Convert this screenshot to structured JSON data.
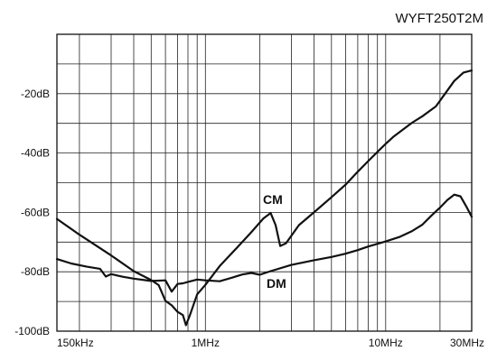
{
  "chart_data": {
    "type": "line",
    "title": "WYFT250T2M",
    "x_scale": "log",
    "xlim_hz": [
      150000,
      30000000
    ],
    "ylim_db": [
      -100,
      0
    ],
    "grid": true,
    "x_tick_labels": [
      {
        "hz": 150000,
        "label": "150kHz"
      },
      {
        "hz": 1000000,
        "label": "1MHz"
      },
      {
        "hz": 10000000,
        "label": "10MHz"
      },
      {
        "hz": 30000000,
        "label": "30MHz"
      }
    ],
    "y_tick_labels": [
      {
        "db": -20,
        "label": "-20dB"
      },
      {
        "db": -40,
        "label": "-40dB"
      },
      {
        "db": -60,
        "label": "-60dB"
      },
      {
        "db": -80,
        "label": "-80dB"
      },
      {
        "db": -100,
        "label": "-100dB"
      }
    ],
    "series": [
      {
        "name": "CM",
        "points": [
          [
            150000,
            -62.2
          ],
          [
            200000,
            -67.5
          ],
          [
            300000,
            -74.5
          ],
          [
            400000,
            -79.8
          ],
          [
            500000,
            -82.8
          ],
          [
            550000,
            -84.5
          ],
          [
            600000,
            -89.8
          ],
          [
            650000,
            -91.3
          ],
          [
            700000,
            -93.5
          ],
          [
            750000,
            -94.6
          ],
          [
            780000,
            -98.0
          ],
          [
            820000,
            -94.6
          ],
          [
            900000,
            -87.6
          ],
          [
            1000000,
            -84.4
          ],
          [
            1200000,
            -78.1
          ],
          [
            1500000,
            -71.8
          ],
          [
            1800000,
            -66.6
          ],
          [
            2100000,
            -62.0
          ],
          [
            2300000,
            -60.2
          ],
          [
            2450000,
            -64.3
          ],
          [
            2600000,
            -71.3
          ],
          [
            2800000,
            -70.4
          ],
          [
            3300000,
            -64.3
          ],
          [
            4000000,
            -60.0
          ],
          [
            5000000,
            -54.9
          ],
          [
            6000000,
            -50.6
          ],
          [
            7000000,
            -46.3
          ],
          [
            8000000,
            -42.7
          ],
          [
            9000000,
            -39.6
          ],
          [
            10000000,
            -36.9
          ],
          [
            11000000,
            -34.6
          ],
          [
            14000000,
            -29.8
          ],
          [
            16000000,
            -27.6
          ],
          [
            19000000,
            -24.3
          ],
          [
            21000000,
            -20.6
          ],
          [
            24000000,
            -15.7
          ],
          [
            27000000,
            -12.9
          ],
          [
            30000000,
            -12.2
          ]
        ]
      },
      {
        "name": "DM",
        "points": [
          [
            150000,
            -75.7
          ],
          [
            180000,
            -77.2
          ],
          [
            220000,
            -78.3
          ],
          [
            260000,
            -79.0
          ],
          [
            280000,
            -81.6
          ],
          [
            300000,
            -80.8
          ],
          [
            350000,
            -81.7
          ],
          [
            400000,
            -82.3
          ],
          [
            500000,
            -83.1
          ],
          [
            600000,
            -82.9
          ],
          [
            650000,
            -86.7
          ],
          [
            700000,
            -84.1
          ],
          [
            750000,
            -83.9
          ],
          [
            800000,
            -83.4
          ],
          [
            900000,
            -82.6
          ],
          [
            1000000,
            -82.9
          ],
          [
            1200000,
            -83.2
          ],
          [
            1400000,
            -82.0
          ],
          [
            1600000,
            -80.9
          ],
          [
            1800000,
            -80.4
          ],
          [
            2000000,
            -81.0
          ],
          [
            2300000,
            -79.8
          ],
          [
            3000000,
            -77.7
          ],
          [
            4000000,
            -76.1
          ],
          [
            5000000,
            -75.0
          ],
          [
            6000000,
            -73.9
          ],
          [
            7000000,
            -72.7
          ],
          [
            8000000,
            -71.5
          ],
          [
            10000000,
            -69.8
          ],
          [
            12000000,
            -68.2
          ],
          [
            14000000,
            -66.3
          ],
          [
            16000000,
            -64.1
          ],
          [
            18000000,
            -61.0
          ],
          [
            20000000,
            -58.4
          ],
          [
            22000000,
            -55.8
          ],
          [
            24000000,
            -54.0
          ],
          [
            26000000,
            -54.6
          ],
          [
            28000000,
            -58.0
          ],
          [
            30000000,
            -61.5
          ]
        ]
      }
    ]
  }
}
